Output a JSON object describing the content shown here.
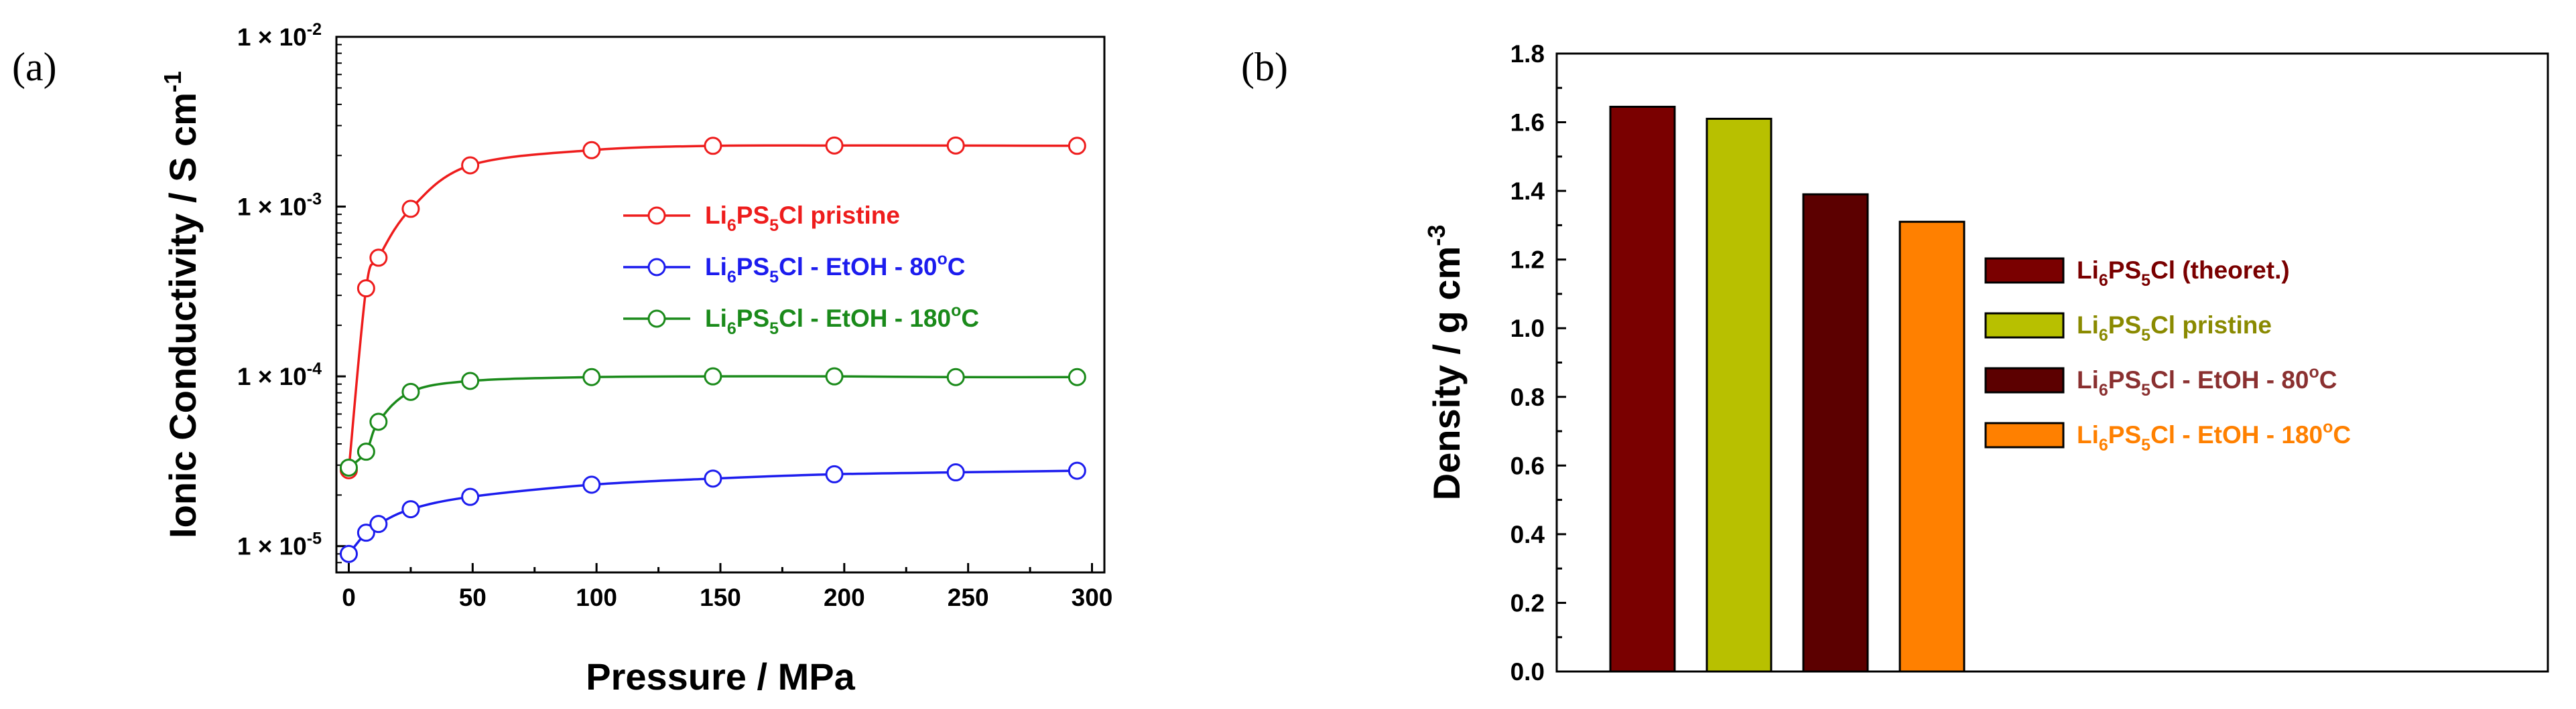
{
  "panel_a_label": "(a)",
  "panel_b_label": "(b)",
  "colors": {
    "pristine": "#ee1c1c",
    "etoh80": "#1c1cee",
    "etoh180": "#1a8a1a",
    "bar_theoret": "#7a0000",
    "bar_pristine": "#b8c000",
    "bar_etoh80": "#5c0000",
    "bar_etoh180": "#ff8000",
    "leg_theoret_text": "#7a0000",
    "leg_pristine_text": "#8a8a00",
    "leg_etoh80_text": "#8a3030",
    "leg_etoh180_text": "#ff8000"
  },
  "chart_data": [
    {
      "type": "line",
      "panel": "(a)",
      "xlabel": "Pressure / MPa",
      "ylabel_main": "Ionic Conductivity / S cm",
      "ylabel_sup": "-1",
      "yscale": "log",
      "xlim": [
        -5,
        305
      ],
      "ylim": [
        7e-06,
        0.01
      ],
      "xticks": [
        0,
        50,
        100,
        150,
        200,
        250,
        300
      ],
      "yticks": [
        {
          "value": 1e-05,
          "mant": "1 × 10",
          "exp": "-5"
        },
        {
          "value": 0.0001,
          "mant": "1 × 10",
          "exp": "-4"
        },
        {
          "value": 0.001,
          "mant": "1 × 10",
          "exp": "-3"
        },
        {
          "value": 0.01,
          "mant": "1 × 10",
          "exp": "-2"
        }
      ],
      "series": [
        {
          "name": "Li6PS5Cl pristine",
          "key": "pristine",
          "legend_parts": [
            "Li",
            "6",
            "PS",
            "5",
            "Cl pristine"
          ],
          "x": [
            0,
            7,
            12,
            25,
            49,
            98,
            147,
            196,
            245,
            294
          ],
          "y": [
            2.8e-05,
            0.00033,
            0.0005,
            0.00097,
            0.00175,
            0.00215,
            0.00228,
            0.00229,
            0.00229,
            0.00228
          ]
        },
        {
          "name": "Li6PS5Cl - EtOH - 80oC",
          "key": "etoh80",
          "legend_parts": [
            "Li",
            "6",
            "PS",
            "5",
            "Cl - EtOH - 80",
            "o",
            "C"
          ],
          "x": [
            0,
            7,
            12,
            25,
            49,
            98,
            147,
            196,
            245,
            294
          ],
          "y": [
            9e-06,
            1.2e-05,
            1.35e-05,
            1.65e-05,
            1.95e-05,
            2.3e-05,
            2.5e-05,
            2.65e-05,
            2.72e-05,
            2.78e-05
          ]
        },
        {
          "name": "Li6PS5Cl - EtOH - 180oC",
          "key": "etoh180",
          "legend_parts": [
            "Li",
            "6",
            "PS",
            "5",
            "Cl - EtOH - 180",
            "o",
            "C"
          ],
          "x": [
            0,
            7,
            12,
            25,
            49,
            98,
            147,
            196,
            245,
            294
          ],
          "y": [
            2.9e-05,
            3.6e-05,
            5.4e-05,
            8.1e-05,
            9.4e-05,
            9.9e-05,
            0.0001,
            0.0001,
            9.9e-05,
            9.9e-05
          ]
        }
      ]
    },
    {
      "type": "bar",
      "panel": "(b)",
      "ylabel_main": "Density / g cm",
      "ylabel_sup": "-3",
      "ylim": [
        0,
        1.8
      ],
      "yticks": [
        "0.0",
        "0.2",
        "0.4",
        "0.6",
        "0.8",
        "1.0",
        "1.2",
        "1.4",
        "1.6",
        "1.8"
      ],
      "categories": [
        "Li6PS5Cl (theoret.)",
        "Li6PS5Cl pristine",
        "Li6PS5Cl - EtOH - 80oC",
        "Li6PS5Cl - EtOH - 180oC"
      ],
      "keys": [
        "theoret",
        "pristine",
        "etoh80",
        "etoh180"
      ],
      "legend_parts": [
        [
          "Li",
          "6",
          "PS",
          "5",
          "Cl (theoret.)"
        ],
        [
          "Li",
          "6",
          "PS",
          "5",
          "Cl pristine"
        ],
        [
          "Li",
          "6",
          "PS",
          "5",
          "Cl - EtOH - 80",
          "o",
          "C"
        ],
        [
          "Li",
          "6",
          "PS",
          "5",
          "Cl - EtOH - 180",
          "o",
          "C"
        ]
      ],
      "values": [
        1.645,
        1.61,
        1.39,
        1.31
      ]
    }
  ]
}
